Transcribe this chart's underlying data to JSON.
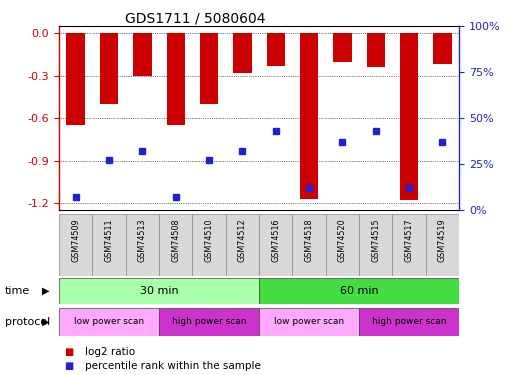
{
  "title": "GDS1711 / 5080604",
  "samples": [
    "GSM74509",
    "GSM74511",
    "GSM74513",
    "GSM74508",
    "GSM74510",
    "GSM74512",
    "GSM74516",
    "GSM74518",
    "GSM74520",
    "GSM74515",
    "GSM74517",
    "GSM74519"
  ],
  "log2_ratio": [
    -0.65,
    -0.5,
    -0.3,
    -0.65,
    -0.5,
    -0.28,
    -0.23,
    -1.17,
    -0.2,
    -0.24,
    -1.18,
    -0.22
  ],
  "percentile_rank": [
    7,
    27,
    32,
    7,
    27,
    32,
    43,
    12,
    37,
    43,
    12,
    37
  ],
  "ylim_left": [
    -1.25,
    0.05
  ],
  "ylim_right": [
    -1.5625,
    6.25
  ],
  "yticks_left": [
    -1.2,
    -0.9,
    -0.6,
    -0.3,
    0.0
  ],
  "yticks_right": [
    0,
    25,
    50,
    75,
    100
  ],
  "ytick_right_labels": [
    "0%",
    "25%",
    "50%",
    "75%",
    "100%"
  ],
  "bar_color": "#cc0000",
  "dot_color": "#2222cc",
  "bar_width": 0.55,
  "time_data": [
    {
      "label": "30 min",
      "start": 0,
      "end": 6,
      "color": "#aaffaa"
    },
    {
      "label": "60 min",
      "start": 6,
      "end": 12,
      "color": "#44dd44"
    }
  ],
  "prot_data": [
    {
      "label": "low power scan",
      "start": 0,
      "end": 3,
      "color": "#ffaaff"
    },
    {
      "label": "high power scan",
      "start": 3,
      "end": 6,
      "color": "#cc33cc"
    },
    {
      "label": "low power scan",
      "start": 6,
      "end": 9,
      "color": "#ffaaff"
    },
    {
      "label": "high power scan",
      "start": 9,
      "end": 12,
      "color": "#cc33cc"
    }
  ],
  "legend_items": [
    {
      "label": "log2 ratio",
      "color": "#cc0000"
    },
    {
      "label": "percentile rank within the sample",
      "color": "#2222cc"
    }
  ],
  "background_color": "#ffffff",
  "left_axis_color": "#cc0000",
  "right_axis_color": "#2222cc",
  "grid_color": "#000000",
  "sample_bg": "#d8d8d8"
}
